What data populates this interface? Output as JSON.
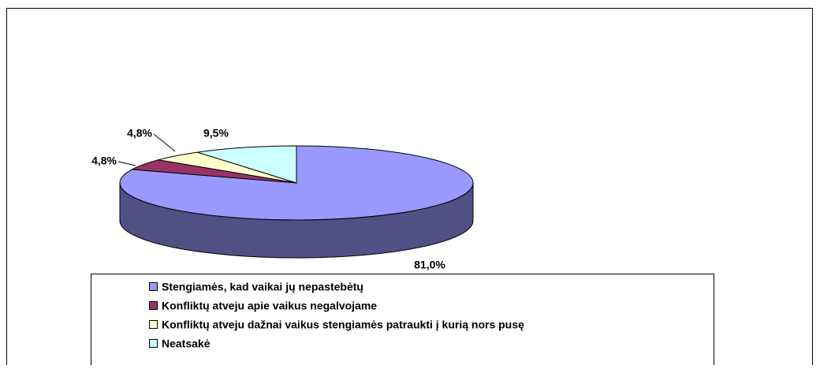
{
  "chart_data": {
    "type": "pie",
    "three_d": true,
    "categories": [
      "Stengiamės, kad vaikai jų nepastebėtų",
      "Konfliktų atveju apie vaikus negalvojame",
      "Konfliktų atveju dažnai vaikus stengiamės patraukti į kurią nors pusę",
      "Neatsakė"
    ],
    "values": [
      81.0,
      4.8,
      4.8,
      9.5
    ],
    "value_labels": [
      "81,0%",
      "4,8%",
      "4,8%",
      "9,5%"
    ],
    "colors": [
      "#9999ff",
      "#993366",
      "#ffffcc",
      "#ccffff"
    ],
    "legend": "bottom"
  }
}
